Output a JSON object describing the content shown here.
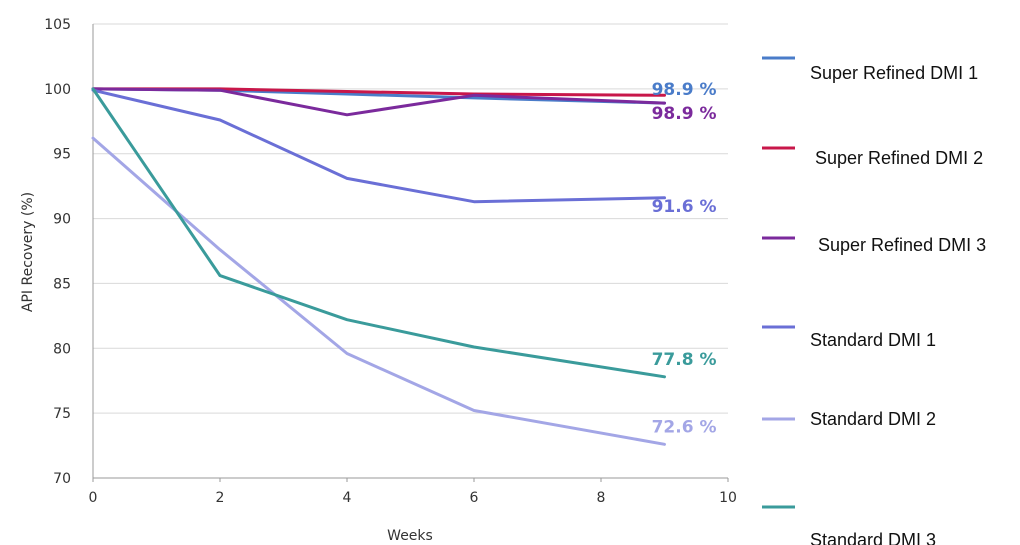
{
  "chart_data": {
    "type": "line",
    "xlabel": "Weeks",
    "ylabel": "API Recovery (%)",
    "xlim": [
      0,
      10
    ],
    "ylim": [
      70,
      105
    ],
    "xticks": [
      0,
      2,
      4,
      6,
      8,
      10
    ],
    "yticks": [
      70,
      75,
      80,
      85,
      90,
      95,
      100,
      105
    ],
    "grid": "horizontal",
    "legend_position": "right",
    "series": [
      {
        "name": "Super Refined DMI 1",
        "color": "#4a7cc9",
        "x": [
          0,
          2,
          4,
          6,
          9
        ],
        "y": [
          100,
          99.9,
          99.6,
          99.3,
          98.9
        ],
        "end_label": "98.9 %"
      },
      {
        "name": "Super Refined DMI 2",
        "color": "#c8174a",
        "x": [
          0,
          2,
          4,
          6,
          9
        ],
        "y": [
          100,
          100,
          99.8,
          99.6,
          99.5
        ],
        "end_label": ""
      },
      {
        "name": "Super Refined DMI 3",
        "color": "#7b2a9c",
        "x": [
          0,
          2,
          4,
          6,
          9
        ],
        "y": [
          100,
          99.9,
          98.0,
          99.5,
          98.9
        ],
        "end_label": "98.9 %"
      },
      {
        "name": "Standard DMI 1",
        "color": "#6a6fd6",
        "x": [
          0,
          2,
          4,
          6,
          9
        ],
        "y": [
          99.9,
          97.6,
          93.1,
          91.3,
          91.6
        ],
        "end_label": "91.6 %"
      },
      {
        "name": "Standard DMI 2",
        "color": "#a3a6e6",
        "x": [
          0,
          2,
          4,
          6,
          9
        ],
        "y": [
          96.2,
          87.6,
          79.6,
          75.2,
          72.6
        ],
        "end_label": "72.6 %"
      },
      {
        "name": "Standard DMI 3",
        "color": "#3a9b9b",
        "x": [
          0,
          2,
          4,
          6,
          9
        ],
        "y": [
          100,
          85.6,
          82.2,
          80.1,
          77.8
        ],
        "end_label": "77.8 %"
      }
    ]
  }
}
